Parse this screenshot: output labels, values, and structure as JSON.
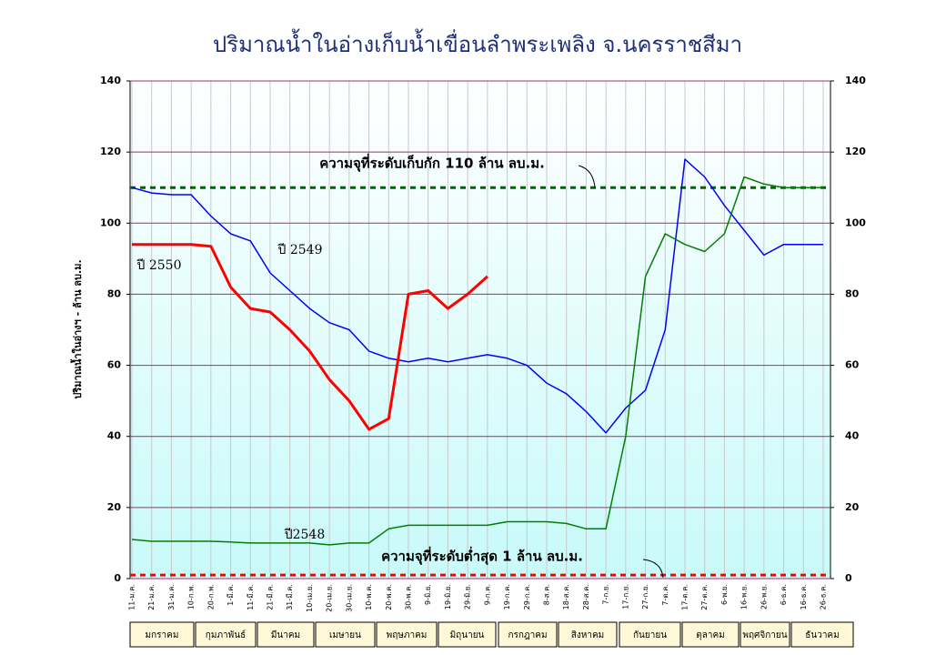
{
  "chart_data": {
    "type": "line",
    "title": "ปริมาณน้ำในอ่างเก็บน้ำเขื่อนลำพระเพลิง จ.นครราชสีมา",
    "y_label": "ปริมาณน้ำในอ่างฯ - ล้าน ลบ.ม.",
    "categories": [
      "11-ม.ค.",
      "21-ม.ค.",
      "31-ม.ค.",
      "10-ก.พ.",
      "20-ก.พ.",
      "1-มี.ค.",
      "11-มี.ค.",
      "21-มี.ค.",
      "31-มี.ค.",
      "10-เม.ย.",
      "20-เม.ย.",
      "30-เม.ย.",
      "10-พ.ค.",
      "20-พ.ค.",
      "30-พ.ค.",
      "9-มิ.ย.",
      "19-มิ.ย.",
      "29-มิ.ย.",
      "9-ก.ค.",
      "19-ก.ค.",
      "29-ก.ค.",
      "8-ส.ค.",
      "18-ส.ค.",
      "28-ส.ค.",
      "7-ก.ย.",
      "17-ก.ย.",
      "27-ก.ย.",
      "7-ต.ค.",
      "17-ต.ค.",
      "27-ต.ค.",
      "6-พ.ย.",
      "16-พ.ย.",
      "26-พ.ย.",
      "6-ธ.ค.",
      "16-ธ.ค.",
      "26-ธ.ค."
    ],
    "series": [
      {
        "name": "ปี 2549",
        "color": "#0000ff",
        "values": [
          110,
          108.5,
          108,
          108,
          102,
          97,
          95,
          86,
          81,
          76,
          72,
          70,
          64,
          62,
          61,
          62,
          61,
          62,
          63,
          62,
          60,
          55,
          52,
          47,
          41,
          48,
          53,
          70,
          118,
          113,
          105,
          98,
          91,
          94,
          94,
          94
        ]
      },
      {
        "name": "ปี 2550",
        "color": "#ff0000",
        "values": [
          94,
          94,
          94,
          94,
          93.5,
          82,
          76,
          75,
          70,
          64,
          56,
          50,
          42,
          45,
          80,
          81,
          76,
          80,
          85,
          null,
          null,
          null,
          null,
          null,
          null,
          null,
          null,
          null,
          null,
          null,
          null,
          null,
          null,
          null,
          null,
          null
        ]
      },
      {
        "name": "ปี2548",
        "color": "#008000",
        "values": [
          11,
          10.5,
          10.5,
          10.5,
          10.5,
          10.3,
          10,
          10,
          10,
          10,
          9.5,
          10,
          10,
          14,
          15,
          15,
          15,
          15,
          15,
          16,
          16,
          16,
          15.5,
          14,
          14,
          40,
          85,
          97,
          94,
          92,
          97,
          113,
          111,
          110,
          110,
          110
        ]
      }
    ],
    "reference_lines": [
      {
        "value": 110,
        "label": "ความจุที่ระดับเก็บกัก 110 ล้าน ลบ.ม.",
        "color": "#006400"
      },
      {
        "value": 1,
        "label": "ความจุที่ระดับต่ำสุด 1 ล้าน ลบ.ม.",
        "color": "#ff0000"
      }
    ],
    "months": [
      "มกราคม",
      "กุมภาพันธ์",
      "มีนาคม",
      "เมษายน",
      "พฤษภาคม",
      "มิถุนายน",
      "กรกฎาคม",
      "สิงหาคม",
      "กันยายน",
      "ตุลาคม",
      "พฤศจิกายน",
      "ธันวาคม"
    ],
    "ylim": [
      0,
      140
    ],
    "yticks": [
      0,
      20,
      40,
      60,
      80,
      100,
      120,
      140
    ],
    "grid": true
  }
}
